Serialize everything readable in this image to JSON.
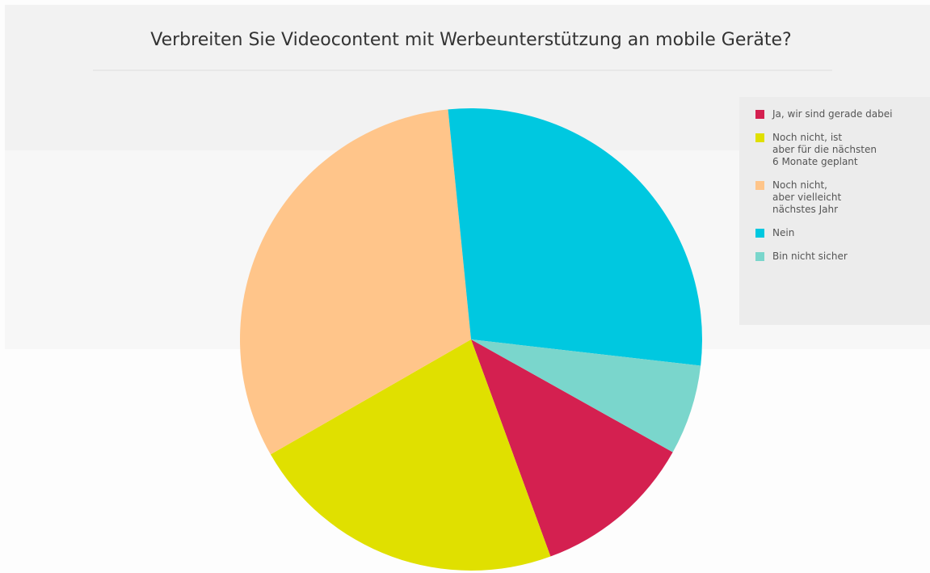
{
  "chart_data": {
    "type": "pie",
    "title": "Verbreiten Sie Videocontent mit Werbeunterstützung an mobile Geräte?",
    "categories": [
      "Ja, wir sind gerade dabei",
      "Noch nicht, ist\naber für die nächsten\n6 Monate geplant",
      "Noch nicht,\naber vielleicht\nnächstes Jahr",
      "Nein",
      "Bin nicht sicher"
    ],
    "values": [
      11.3,
      22.3,
      31.7,
      28.4,
      6.3
    ],
    "colors": [
      "#d42050",
      "#e0e000",
      "#ffc58a",
      "#00c8e0",
      "#7ad6cc"
    ],
    "legend": "right"
  }
}
